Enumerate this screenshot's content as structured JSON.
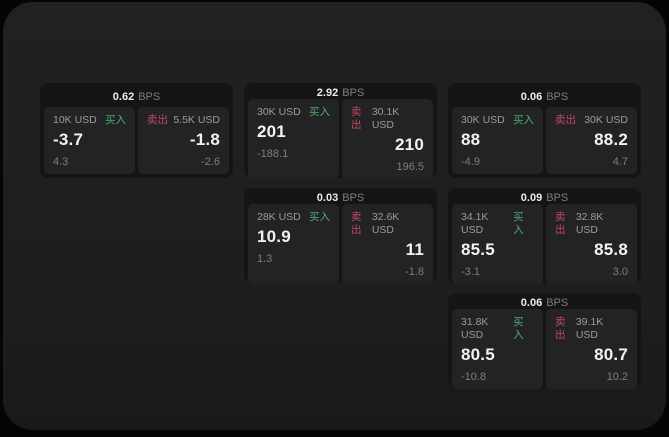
{
  "labels": {
    "buy": "买入",
    "sell": "卖出",
    "bps_unit": "BPS"
  },
  "colors": {
    "buy_green": "#4fae6d",
    "sell_red": "#c04a5f",
    "frame_bg": "#1e1e1f",
    "card_bg": "#151516",
    "panel_bg": "#232326"
  },
  "cards": [
    {
      "bps": "0.62",
      "buy": {
        "size": "10K USD",
        "price": "-3.7",
        "change": "4.3"
      },
      "sell": {
        "size": "5.5K USD",
        "price": "-1.8",
        "change": "-2.6"
      }
    },
    {
      "bps": "2.92",
      "buy": {
        "size": "30K USD",
        "price": "201",
        "change": "-188.1"
      },
      "sell": {
        "size": "30.1K USD",
        "price": "210",
        "change": "196.5"
      }
    },
    {
      "bps": "0.06",
      "buy": {
        "size": "30K USD",
        "price": "88",
        "change": "-4.9"
      },
      "sell": {
        "size": "30K USD",
        "price": "88.2",
        "change": "4.7"
      }
    },
    {
      "bps": "0.03",
      "buy": {
        "size": "28K USD",
        "price": "10.9",
        "change": "1.3"
      },
      "sell": {
        "size": "32.6K USD",
        "price": "11",
        "change": "-1.8"
      }
    },
    {
      "bps": "0.09",
      "buy": {
        "size": "34.1K USD",
        "price": "85.5",
        "change": "-3.1"
      },
      "sell": {
        "size": "32.8K USD",
        "price": "85.8",
        "change": "3.0"
      }
    },
    {
      "bps": "0.06",
      "buy": {
        "size": "31.8K USD",
        "price": "80.5",
        "change": "-10.8"
      },
      "sell": {
        "size": "39.1K USD",
        "price": "80.7",
        "change": "10.2"
      }
    }
  ]
}
